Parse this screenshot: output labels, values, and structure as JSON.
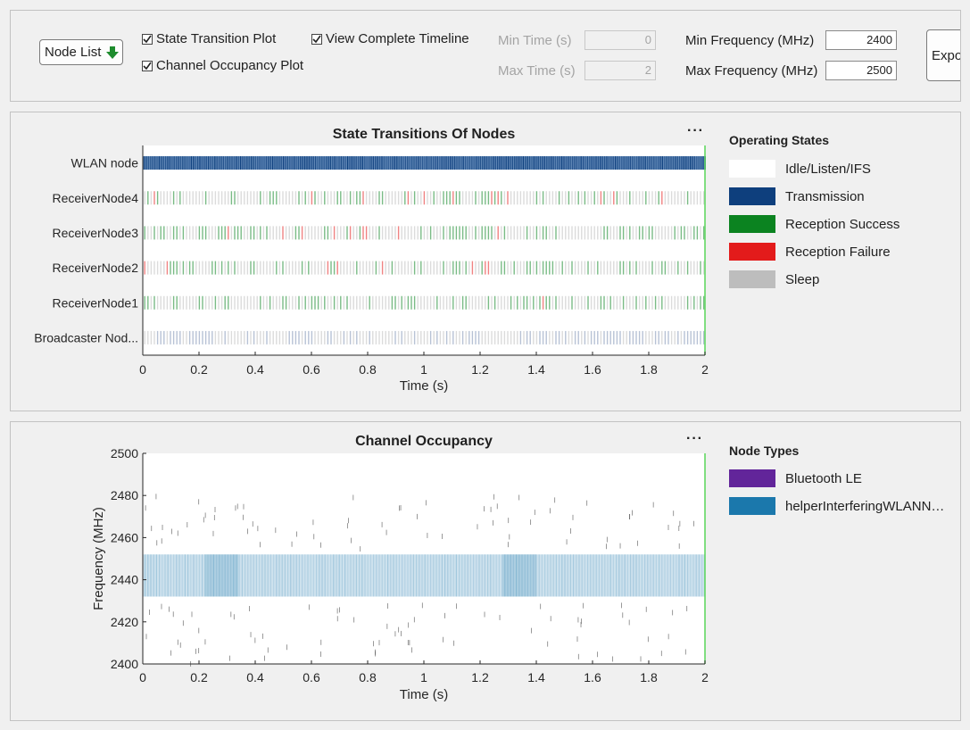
{
  "controls": {
    "node_list_label": "Node List",
    "state_transition_plot": {
      "label": "State Transition Plot",
      "checked": true
    },
    "channel_occupancy_plot": {
      "label": "Channel Occupancy Plot",
      "checked": true
    },
    "view_complete_timeline": {
      "label": "View Complete Timeline",
      "checked": true
    },
    "min_time": {
      "label": "Min Time (s)",
      "value": "0"
    },
    "max_time": {
      "label": "Max Time (s)",
      "value": "2"
    },
    "min_frequency": {
      "label": "Min Frequency (MHz)",
      "value": "2400"
    },
    "max_frequency": {
      "label": "Max Frequency (MHz)",
      "value": "2500"
    },
    "export_label": "Expo"
  },
  "state_panel": {
    "title": "State Transitions Of Nodes",
    "menu_glyph": "···",
    "legend": {
      "title": "Operating States",
      "items": [
        {
          "label": "Idle/Listen/IFS",
          "color": "#ffffff"
        },
        {
          "label": "Transmission",
          "color": "#0e3f7d"
        },
        {
          "label": "Reception Success",
          "color": "#0b8320"
        },
        {
          "label": "Reception Failure",
          "color": "#e31b1b"
        },
        {
          "label": "Sleep",
          "color": "#bdbdbd"
        }
      ]
    }
  },
  "occupancy_panel": {
    "title": "Channel Occupancy",
    "menu_glyph": "···",
    "legend": {
      "title": "Node Types",
      "items": [
        {
          "label": "Bluetooth LE",
          "color": "#62259a"
        },
        {
          "label": "helperInterferingWLANN…",
          "color": "#1b78ac"
        }
      ]
    }
  },
  "chart_data": [
    {
      "type": "timeline",
      "title": "State Transitions Of Nodes",
      "xlabel": "Time (s)",
      "xlim": [
        0,
        2
      ],
      "xticks": [
        "0",
        "0.2",
        "0.4",
        "0.6",
        "0.8",
        "1",
        "1.2",
        "1.4",
        "1.6",
        "1.8",
        "2"
      ],
      "categories": [
        "WLAN node",
        "ReceiverNode4",
        "ReceiverNode3",
        "ReceiverNode2",
        "ReceiverNode1",
        "Broadcaster Nod..."
      ],
      "legend_position": "right"
    },
    {
      "type": "timeline",
      "title": "Channel Occupancy",
      "xlabel": "Time (s)",
      "ylabel": "Frequency (MHz)",
      "xlim": [
        0,
        2
      ],
      "ylim": [
        2400,
        2500
      ],
      "xticks": [
        "0",
        "0.2",
        "0.4",
        "0.6",
        "0.8",
        "1",
        "1.2",
        "1.4",
        "1.6",
        "1.8",
        "2"
      ],
      "yticks": [
        "2500",
        "2480",
        "2460",
        "2440",
        "2420",
        "2400"
      ],
      "series": [
        {
          "name": "helperInterferingWLANN…",
          "band_mhz": [
            2432,
            2452
          ],
          "time_s": [
            0,
            2
          ]
        }
      ],
      "legend_position": "right"
    }
  ]
}
